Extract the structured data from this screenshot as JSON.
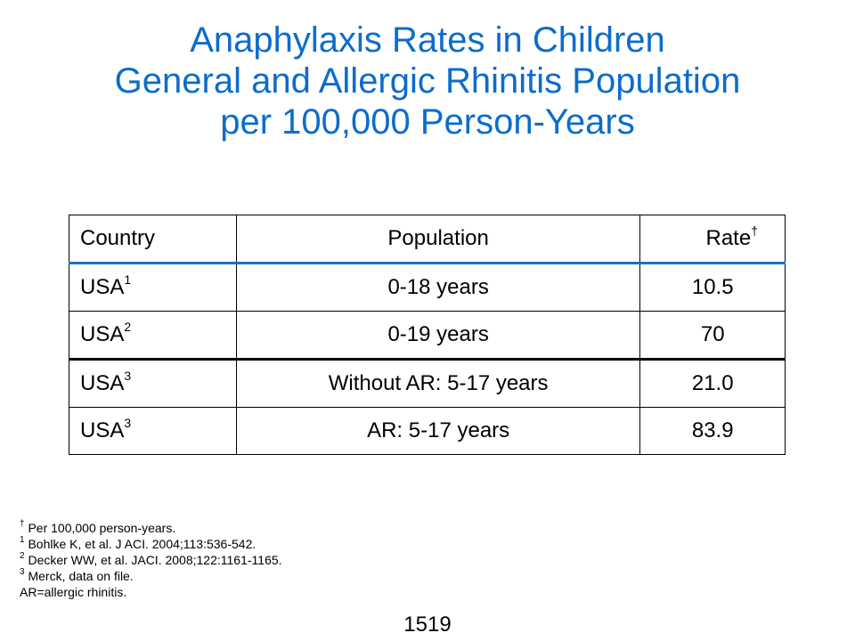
{
  "title": {
    "line1": "Anaphylaxis Rates in Children",
    "line2": "General and Allergic Rhinitis Population",
    "line3": "per 100,000 Person-Years"
  },
  "table": {
    "headers": {
      "country": "Country",
      "population": "Population",
      "rate": "Rate",
      "rate_mark": "†"
    },
    "rows": [
      {
        "country": "USA",
        "ref": "1",
        "population": "0-18 years",
        "rate": "10.5"
      },
      {
        "country": "USA",
        "ref": "2",
        "population": "0-19 years",
        "rate": "70"
      },
      {
        "country": "USA",
        "ref": "3",
        "population": "Without AR: 5-17 years",
        "rate": "21.0"
      },
      {
        "country": "USA",
        "ref": "3",
        "population": "AR:  5-17 years",
        "rate": "83.9"
      }
    ]
  },
  "footnotes": [
    {
      "mark": "†",
      "text": " Per 100,000 person-years."
    },
    {
      "mark": "1",
      "text": " Bohlke K, et al. J ACI. 2004;113:536-542."
    },
    {
      "mark": "2",
      "text": "  Decker WW, et al. JACI. 2008;122:1161-1165."
    },
    {
      "mark": "3",
      "text": " Merck, data on file."
    },
    {
      "mark": "",
      "text": "AR=allergic rhinitis."
    }
  ],
  "slide_number": "1519"
}
